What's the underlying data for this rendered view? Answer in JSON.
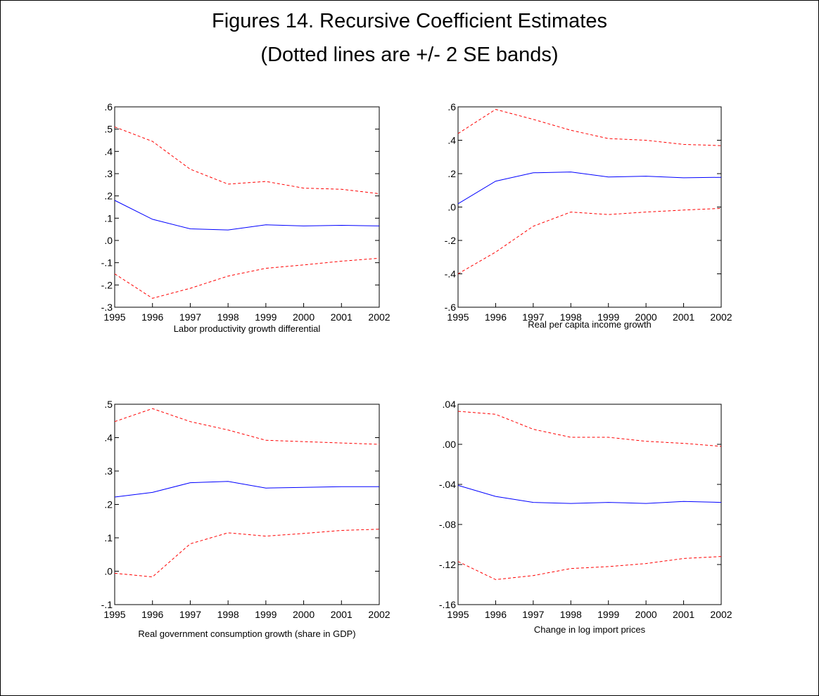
{
  "page": {
    "title": "Figures 14. Recursive Coefficient Estimates",
    "subtitle": "(Dotted lines are +/- 2 SE bands)"
  },
  "colors": {
    "estimate": "#0000ff",
    "bands": "#ff0000",
    "axis": "#000000"
  },
  "chart_data": [
    {
      "type": "line",
      "caption": "Labor productivity growth differential",
      "x": [
        1995,
        1996,
        1997,
        1998,
        1999,
        2000,
        2001,
        2002
      ],
      "ylim": [
        -0.3,
        0.6
      ],
      "yticks": [
        -0.3,
        -0.2,
        -0.1,
        0.0,
        0.1,
        0.2,
        0.3,
        0.4,
        0.5,
        0.6
      ],
      "ytick_labels": [
        "-.3",
        "-.2",
        "-.1",
        ".0",
        ".1",
        ".2",
        ".3",
        ".4",
        ".5",
        ".6"
      ],
      "series": [
        {
          "role": "estimate",
          "style": "solid",
          "values": [
            0.18,
            0.095,
            0.052,
            0.047,
            0.07,
            0.065,
            0.068,
            0.065
          ]
        },
        {
          "role": "upper",
          "style": "dashed",
          "values": [
            0.51,
            0.445,
            0.32,
            0.253,
            0.265,
            0.235,
            0.23,
            0.21
          ]
        },
        {
          "role": "lower",
          "style": "dashed",
          "values": [
            -0.15,
            -0.26,
            -0.215,
            -0.16,
            -0.125,
            -0.11,
            -0.093,
            -0.08
          ]
        }
      ]
    },
    {
      "type": "line",
      "caption": "Real per capita income growth",
      "x": [
        1995,
        1996,
        1997,
        1998,
        1999,
        2000,
        2001,
        2002
      ],
      "ylim": [
        -0.6,
        0.6
      ],
      "yticks": [
        -0.6,
        -0.4,
        -0.2,
        0.0,
        0.2,
        0.4,
        0.6
      ],
      "ytick_labels": [
        "-.6",
        "-.4",
        "-.2",
        ".0",
        ".2",
        ".4",
        ".6"
      ],
      "series": [
        {
          "role": "estimate",
          "style": "solid",
          "values": [
            0.02,
            0.155,
            0.205,
            0.21,
            0.18,
            0.185,
            0.175,
            0.178
          ]
        },
        {
          "role": "upper",
          "style": "dashed",
          "values": [
            0.44,
            0.585,
            0.525,
            0.46,
            0.41,
            0.4,
            0.375,
            0.368
          ]
        },
        {
          "role": "lower",
          "style": "dashed",
          "values": [
            -0.4,
            -0.27,
            -0.115,
            -0.03,
            -0.045,
            -0.03,
            -0.018,
            -0.008
          ]
        }
      ]
    },
    {
      "type": "line",
      "caption": "Real government consumption growth (share in GDP)",
      "x": [
        1995,
        1996,
        1997,
        1998,
        1999,
        2000,
        2001,
        2002
      ],
      "ylim": [
        -0.1,
        0.5
      ],
      "yticks": [
        -0.1,
        0.0,
        0.1,
        0.2,
        0.3,
        0.4,
        0.5
      ],
      "ytick_labels": [
        "-.1",
        ".0",
        ".1",
        ".2",
        ".3",
        ".4",
        ".5"
      ],
      "series": [
        {
          "role": "estimate",
          "style": "solid",
          "values": [
            0.222,
            0.236,
            0.265,
            0.269,
            0.249,
            0.251,
            0.253,
            0.253
          ]
        },
        {
          "role": "upper",
          "style": "dashed",
          "values": [
            0.448,
            0.487,
            0.448,
            0.423,
            0.392,
            0.388,
            0.384,
            0.38
          ]
        },
        {
          "role": "lower",
          "style": "dashed",
          "values": [
            -0.006,
            -0.017,
            0.082,
            0.115,
            0.105,
            0.113,
            0.122,
            0.126
          ]
        }
      ]
    },
    {
      "type": "line",
      "caption": "Change in log import prices",
      "x": [
        1995,
        1996,
        1997,
        1998,
        1999,
        2000,
        2001,
        2002
      ],
      "ylim": [
        -0.16,
        0.04
      ],
      "yticks": [
        -0.16,
        -0.12,
        -0.08,
        -0.04,
        0.0,
        0.04
      ],
      "ytick_labels": [
        "-.16",
        "-.12",
        "-.08",
        "-.04",
        ".00",
        ".04"
      ],
      "series": [
        {
          "role": "estimate",
          "style": "solid",
          "values": [
            -0.041,
            -0.052,
            -0.058,
            -0.059,
            -0.058,
            -0.059,
            -0.057,
            -0.058
          ]
        },
        {
          "role": "upper",
          "style": "dashed",
          "values": [
            0.033,
            0.03,
            0.015,
            0.007,
            0.007,
            0.003,
            0.001,
            -0.002
          ]
        },
        {
          "role": "lower",
          "style": "dashed",
          "values": [
            -0.117,
            -0.135,
            -0.131,
            -0.124,
            -0.122,
            -0.119,
            -0.114,
            -0.112
          ]
        }
      ]
    }
  ]
}
